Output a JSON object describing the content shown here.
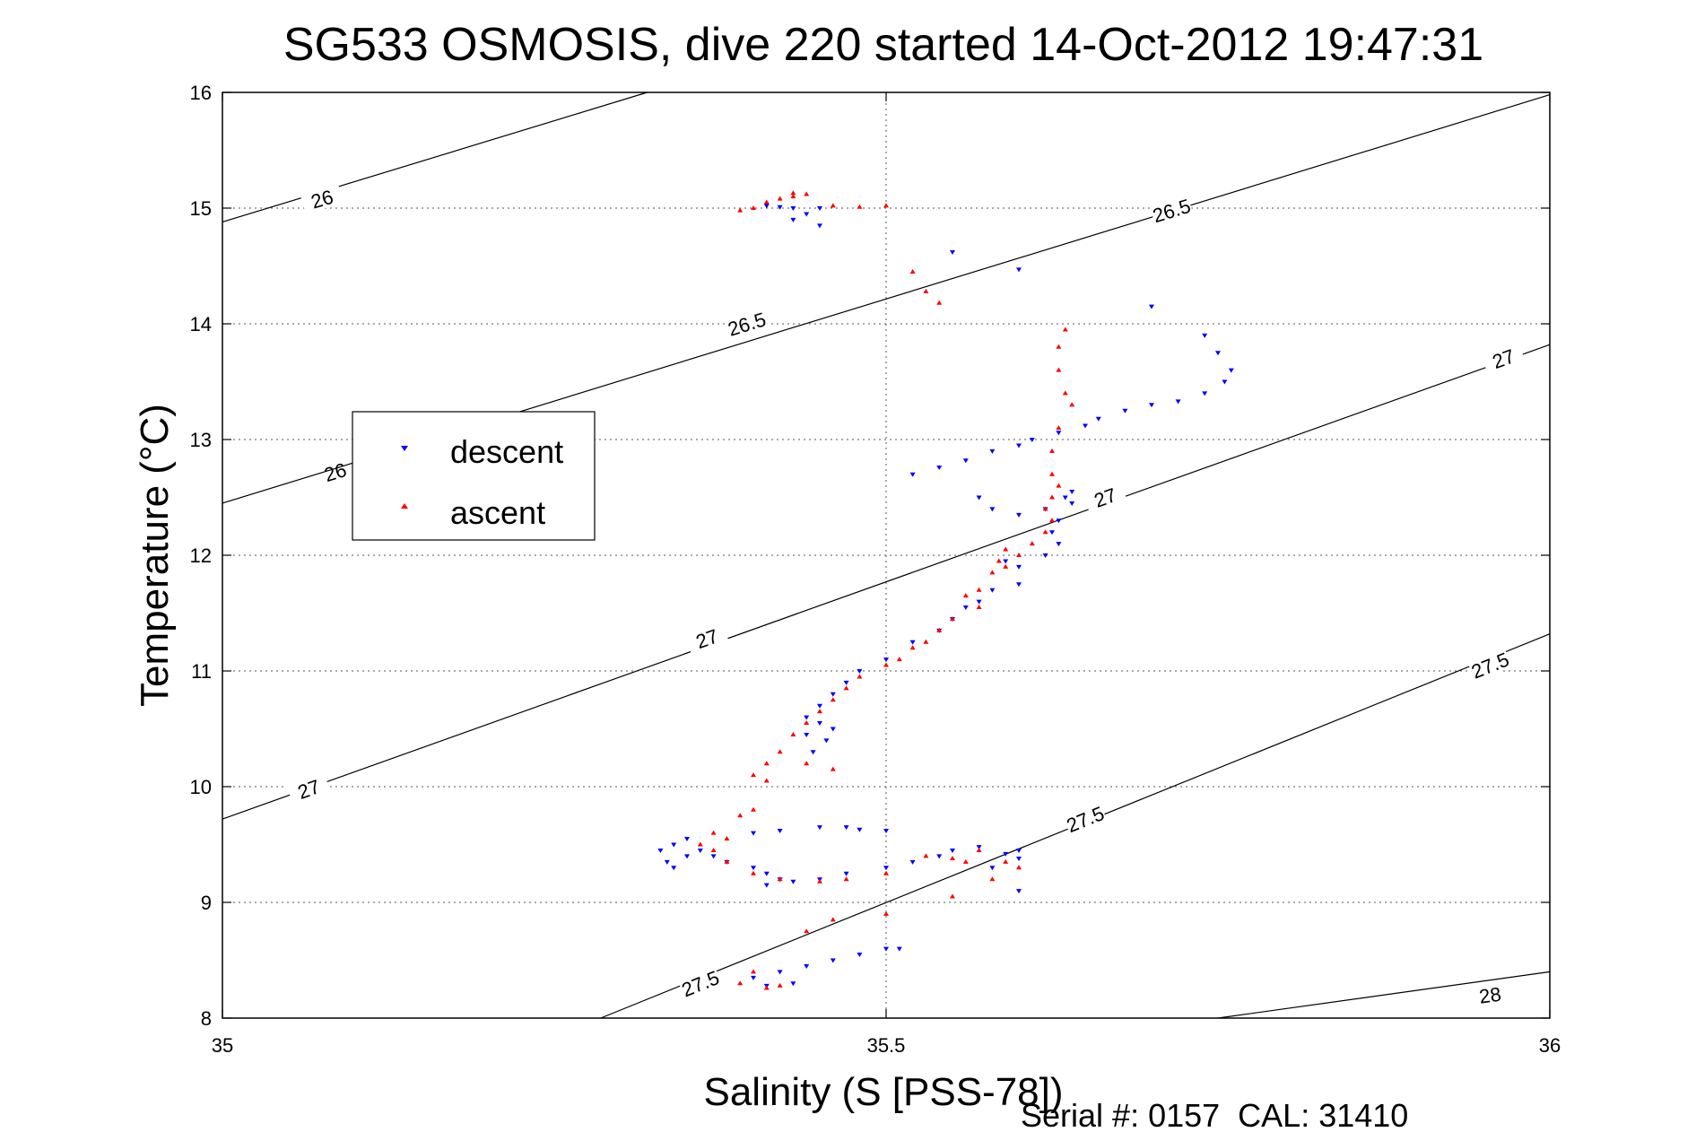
{
  "chart_data": {
    "type": "scatter",
    "title": "SG533 OSMOSIS, dive 220 started 14-Oct-2012 19:47:31",
    "xlabel": "Salinity (S [PSS-78])",
    "ylabel": "Temperature (°C)",
    "xlim": [
      35,
      36
    ],
    "ylim": [
      8,
      16
    ],
    "xticks": [
      "35",
      "35.5",
      "36"
    ],
    "yticks": [
      "8",
      "9",
      "10",
      "11",
      "12",
      "13",
      "14",
      "15",
      "16"
    ],
    "grid": true,
    "legend_position": "left",
    "footer": "Serial #: 0157  CAL: 31410",
    "density_contours": [
      {
        "sigma": "26",
        "labels": [
          "26",
          "26"
        ]
      },
      {
        "sigma": "26.5",
        "labels": [
          "26.5",
          "26.5"
        ]
      },
      {
        "sigma": "27",
        "labels": [
          "27",
          "27",
          "27",
          "27"
        ]
      },
      {
        "sigma": "27.5",
        "labels": [
          "27.5",
          "27.5",
          "27.5"
        ]
      },
      {
        "sigma": "28",
        "labels": [
          "28"
        ]
      }
    ],
    "series": [
      {
        "name": "descent",
        "color": "#0000ff",
        "marker": "triangle-down",
        "points": [
          [
            35.41,
            15.02
          ],
          [
            35.42,
            15.01
          ],
          [
            35.43,
            15.0
          ],
          [
            35.45,
            15.0
          ],
          [
            35.44,
            14.95
          ],
          [
            35.43,
            14.9
          ],
          [
            35.45,
            14.85
          ],
          [
            35.55,
            14.62
          ],
          [
            35.6,
            14.47
          ],
          [
            35.7,
            14.15
          ],
          [
            35.74,
            13.9
          ],
          [
            35.75,
            13.75
          ],
          [
            35.76,
            13.6
          ],
          [
            35.755,
            13.5
          ],
          [
            35.74,
            13.4
          ],
          [
            35.72,
            13.33
          ],
          [
            35.7,
            13.3
          ],
          [
            35.68,
            13.25
          ],
          [
            35.66,
            13.18
          ],
          [
            35.65,
            13.12
          ],
          [
            35.63,
            13.06
          ],
          [
            35.61,
            13.0
          ],
          [
            35.6,
            12.95
          ],
          [
            35.58,
            12.9
          ],
          [
            35.56,
            12.82
          ],
          [
            35.54,
            12.76
          ],
          [
            35.52,
            12.7
          ],
          [
            35.57,
            12.5
          ],
          [
            35.58,
            12.4
          ],
          [
            35.6,
            12.35
          ],
          [
            35.62,
            12.4
          ],
          [
            35.635,
            12.5
          ],
          [
            35.64,
            12.55
          ],
          [
            35.64,
            12.45
          ],
          [
            35.63,
            12.3
          ],
          [
            35.625,
            12.2
          ],
          [
            35.63,
            12.1
          ],
          [
            35.62,
            12.0
          ],
          [
            35.6,
            11.9
          ],
          [
            35.59,
            11.95
          ],
          [
            35.6,
            11.75
          ],
          [
            35.58,
            11.7
          ],
          [
            35.57,
            11.6
          ],
          [
            35.56,
            11.55
          ],
          [
            35.55,
            11.45
          ],
          [
            35.54,
            11.35
          ],
          [
            35.52,
            11.25
          ],
          [
            35.5,
            11.1
          ],
          [
            35.48,
            11.0
          ],
          [
            35.47,
            10.9
          ],
          [
            35.46,
            10.8
          ],
          [
            35.45,
            10.7
          ],
          [
            35.44,
            10.6
          ],
          [
            35.45,
            10.55
          ],
          [
            35.46,
            10.5
          ],
          [
            35.44,
            10.45
          ],
          [
            35.455,
            10.4
          ],
          [
            35.445,
            10.3
          ],
          [
            35.33,
            9.45
          ],
          [
            35.34,
            9.5
          ],
          [
            35.35,
            9.55
          ],
          [
            35.335,
            9.35
          ],
          [
            35.34,
            9.3
          ],
          [
            35.35,
            9.4
          ],
          [
            35.36,
            9.45
          ],
          [
            35.37,
            9.4
          ],
          [
            35.38,
            9.35
          ],
          [
            35.4,
            9.3
          ],
          [
            35.41,
            9.25
          ],
          [
            35.42,
            9.2
          ],
          [
            35.41,
            9.15
          ],
          [
            35.43,
            9.18
          ],
          [
            35.45,
            9.2
          ],
          [
            35.47,
            9.25
          ],
          [
            35.5,
            9.3
          ],
          [
            35.52,
            9.35
          ],
          [
            35.54,
            9.4
          ],
          [
            35.55,
            9.45
          ],
          [
            35.57,
            9.48
          ],
          [
            35.59,
            9.42
          ],
          [
            35.6,
            9.38
          ],
          [
            35.6,
            9.45
          ],
          [
            35.58,
            9.3
          ],
          [
            35.6,
            9.1
          ],
          [
            35.4,
            9.6
          ],
          [
            35.42,
            9.62
          ],
          [
            35.45,
            9.65
          ],
          [
            35.47,
            9.65
          ],
          [
            35.48,
            9.63
          ],
          [
            35.5,
            9.62
          ],
          [
            35.4,
            8.35
          ],
          [
            35.42,
            8.4
          ],
          [
            35.44,
            8.45
          ],
          [
            35.46,
            8.5
          ],
          [
            35.48,
            8.55
          ],
          [
            35.5,
            8.6
          ],
          [
            35.51,
            8.6
          ],
          [
            35.43,
            8.3
          ],
          [
            35.41,
            8.28
          ]
        ]
      },
      {
        "name": "ascent",
        "color": "#ff0000",
        "marker": "triangle-up",
        "points": [
          [
            35.41,
            15.05
          ],
          [
            35.42,
            15.08
          ],
          [
            35.43,
            15.1
          ],
          [
            35.44,
            15.12
          ],
          [
            35.43,
            15.13
          ],
          [
            35.4,
            15.0
          ],
          [
            35.39,
            14.98
          ],
          [
            35.46,
            15.02
          ],
          [
            35.48,
            15.01
          ],
          [
            35.5,
            15.02
          ],
          [
            35.52,
            14.45
          ],
          [
            35.53,
            14.28
          ],
          [
            35.54,
            14.18
          ],
          [
            35.635,
            13.95
          ],
          [
            35.63,
            13.8
          ],
          [
            35.63,
            13.6
          ],
          [
            35.635,
            13.4
          ],
          [
            35.64,
            13.3
          ],
          [
            35.63,
            13.1
          ],
          [
            35.625,
            12.9
          ],
          [
            35.625,
            12.7
          ],
          [
            35.63,
            12.6
          ],
          [
            35.625,
            12.5
          ],
          [
            35.62,
            12.4
          ],
          [
            35.625,
            12.3
          ],
          [
            35.62,
            12.2
          ],
          [
            35.61,
            12.1
          ],
          [
            35.59,
            12.05
          ],
          [
            35.6,
            12.0
          ],
          [
            35.585,
            11.95
          ],
          [
            35.59,
            11.9
          ],
          [
            35.58,
            11.85
          ],
          [
            35.57,
            11.7
          ],
          [
            35.56,
            11.65
          ],
          [
            35.57,
            11.55
          ],
          [
            35.55,
            11.45
          ],
          [
            35.54,
            11.35
          ],
          [
            35.53,
            11.25
          ],
          [
            35.52,
            11.2
          ],
          [
            35.51,
            11.1
          ],
          [
            35.5,
            11.05
          ],
          [
            35.48,
            10.95
          ],
          [
            35.47,
            10.85
          ],
          [
            35.46,
            10.75
          ],
          [
            35.45,
            10.65
          ],
          [
            35.44,
            10.55
          ],
          [
            35.43,
            10.45
          ],
          [
            35.42,
            10.3
          ],
          [
            35.41,
            10.2
          ],
          [
            35.4,
            10.1
          ],
          [
            35.41,
            10.05
          ],
          [
            35.44,
            10.2
          ],
          [
            35.46,
            10.15
          ],
          [
            35.4,
            9.8
          ],
          [
            35.39,
            9.75
          ],
          [
            35.37,
            9.6
          ],
          [
            35.38,
            9.55
          ],
          [
            35.36,
            9.5
          ],
          [
            35.37,
            9.45
          ],
          [
            35.38,
            9.35
          ],
          [
            35.4,
            9.25
          ],
          [
            35.42,
            9.2
          ],
          [
            35.45,
            9.18
          ],
          [
            35.47,
            9.2
          ],
          [
            35.5,
            9.25
          ],
          [
            35.53,
            9.4
          ],
          [
            35.55,
            9.38
          ],
          [
            35.56,
            9.35
          ],
          [
            35.57,
            9.45
          ],
          [
            35.59,
            9.35
          ],
          [
            35.6,
            9.3
          ],
          [
            35.58,
            9.2
          ],
          [
            35.55,
            9.05
          ],
          [
            35.5,
            8.9
          ],
          [
            35.46,
            8.85
          ],
          [
            35.44,
            8.75
          ],
          [
            35.4,
            8.4
          ],
          [
            35.39,
            8.3
          ],
          [
            35.42,
            8.28
          ],
          [
            35.41,
            8.26
          ]
        ]
      }
    ]
  }
}
